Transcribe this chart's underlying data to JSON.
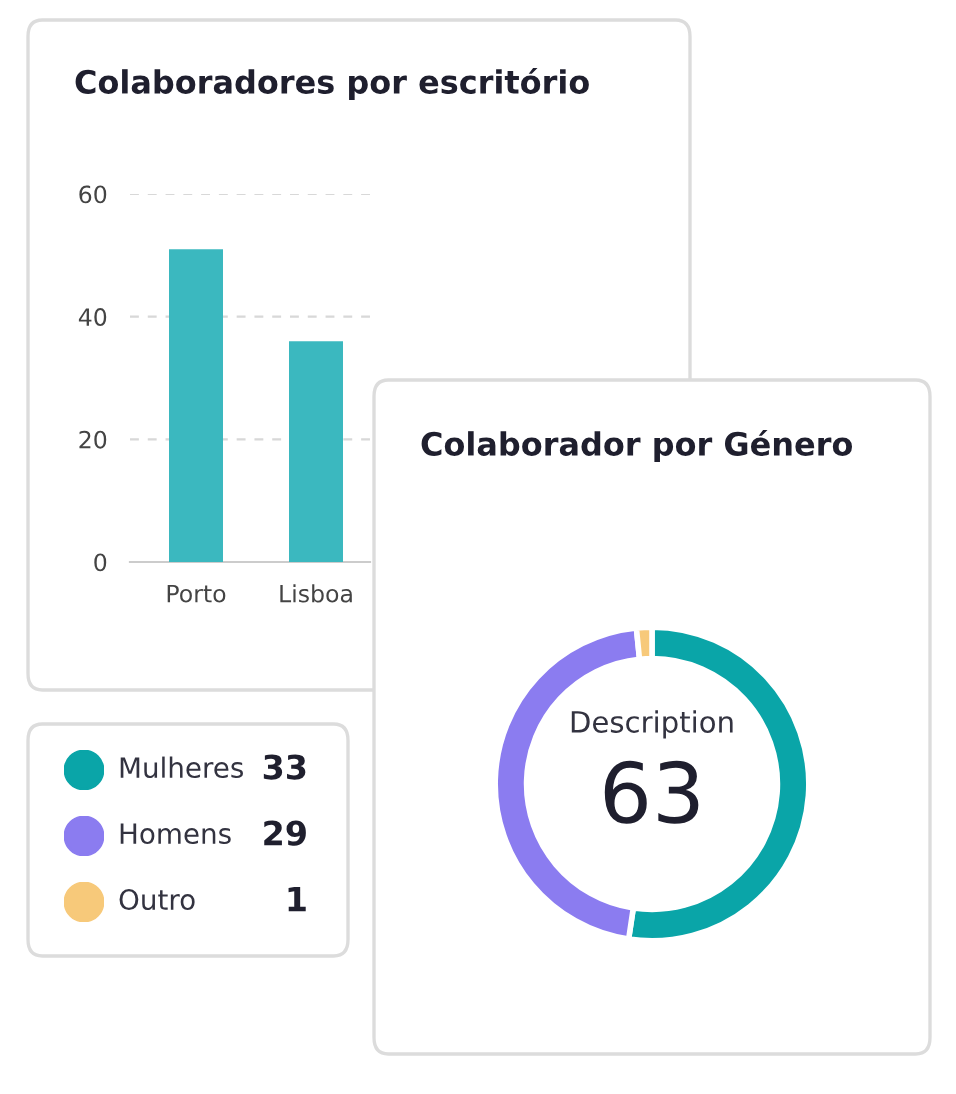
{
  "chart_data": [
    {
      "type": "bar",
      "title": "Colaboradores por escritório",
      "categories": [
        "Porto",
        "Lisboa"
      ],
      "values": [
        51,
        36
      ],
      "color": "#3bb8bf",
      "ylim": [
        0,
        60
      ],
      "yticks": [
        0,
        20,
        40,
        60
      ],
      "grid": "y"
    },
    {
      "type": "donut",
      "title": "Colaborador por Género",
      "categories": [
        "Mulheres",
        "Homens",
        "Outro"
      ],
      "values": [
        33,
        29,
        1
      ],
      "colors": [
        "#0aa5a8",
        "#8b7cf0",
        "#f7c97a"
      ],
      "legend": "left",
      "data_labels": true,
      "annotations": [
        "Description",
        "63"
      ]
    }
  ]
}
